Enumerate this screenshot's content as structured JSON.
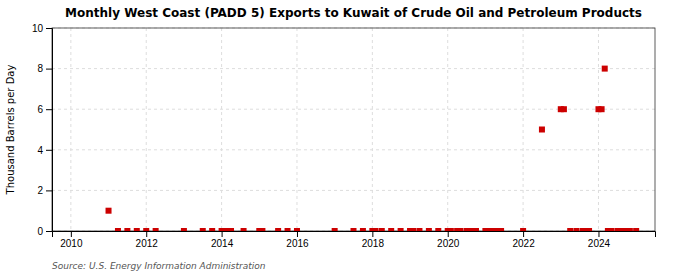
{
  "chart_data": {
    "type": "scatter",
    "title": "Monthly West Coast (PADD 5) Exports to Kuwait of Crude Oil and Petroleum Products",
    "y_label": "Thousand Barrels per Day",
    "annotation": "Source: U.S. Energy Information Administration",
    "color": "#cc0000",
    "marker": "square",
    "grid": true,
    "xlim": [
      2009.5,
      2025.5
    ],
    "ylim": [
      0,
      10
    ],
    "xticks": [
      2010,
      2012,
      2014,
      2016,
      2018,
      2020,
      2022,
      2024
    ],
    "yticks": [
      0,
      2,
      4,
      6,
      8,
      10
    ],
    "x": [
      2011.0,
      2011.25,
      2011.5,
      2011.75,
      2012.0,
      2012.25,
      2013.0,
      2013.5,
      2013.75,
      2014.0,
      2014.083,
      2014.166,
      2014.25,
      2014.583,
      2015.0,
      2015.083,
      2015.5,
      2015.75,
      2016.0,
      2017.0,
      2017.5,
      2017.75,
      2018.0,
      2018.083,
      2018.25,
      2018.5,
      2018.75,
      2019.0,
      2019.083,
      2019.25,
      2019.5,
      2019.75,
      2020.0,
      2020.083,
      2020.25,
      2020.333,
      2020.5,
      2020.583,
      2020.666,
      2020.75,
      2021.0,
      2021.083,
      2021.166,
      2021.25,
      2021.333,
      2021.416,
      2022.0,
      2022.5,
      2023.0,
      2023.083,
      2023.25,
      2023.416,
      2023.583,
      2023.666,
      2023.75,
      2024.0,
      2024.083,
      2024.166,
      2024.25,
      2024.333,
      2024.5,
      2024.583,
      2024.666,
      2024.75,
      2024.833,
      2025.0
    ],
    "values": [
      1.0,
      0.0,
      0.0,
      0.0,
      0.0,
      0.0,
      0.0,
      0.0,
      0.0,
      0.0,
      0.0,
      0.0,
      0.0,
      0.0,
      0.0,
      0.0,
      0.0,
      0.0,
      0.0,
      0.0,
      0.0,
      0.0,
      0.0,
      0.0,
      0.0,
      0.0,
      0.0,
      0.0,
      0.0,
      0.0,
      0.0,
      0.0,
      0.0,
      0.0,
      0.0,
      0.0,
      0.0,
      0.0,
      0.0,
      0.0,
      0.0,
      0.0,
      0.0,
      0.0,
      0.0,
      0.0,
      0.0,
      5.0,
      6.0,
      6.0,
      0.0,
      0.0,
      0.0,
      0.0,
      0.0,
      6.0,
      6.0,
      8.0,
      0.0,
      0.0,
      0.0,
      0.0,
      0.0,
      0.0,
      0.0,
      0.0
    ]
  }
}
